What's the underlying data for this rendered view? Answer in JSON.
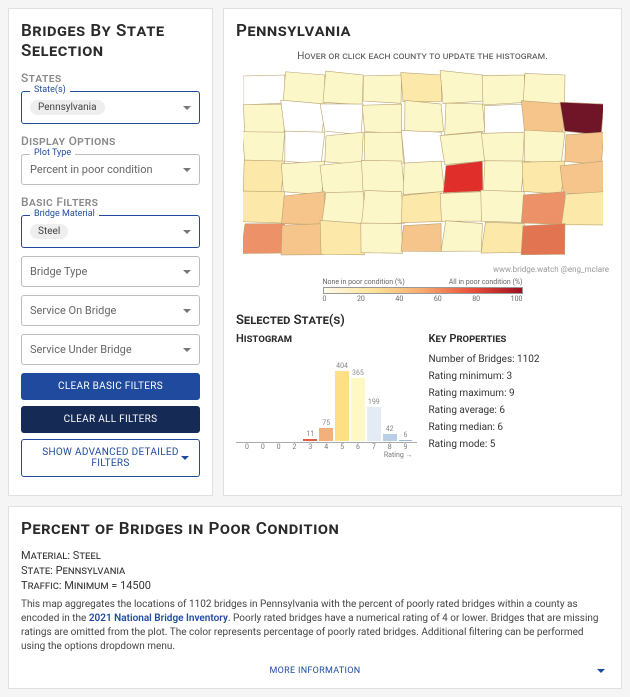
{
  "sidebar": {
    "title": "Bridges By State Selection",
    "sections": {
      "states": {
        "heading": "States",
        "field_label": "State(s)",
        "value": "Pennsylvania"
      },
      "display": {
        "heading": "Display Options",
        "field_label": "Plot Type",
        "value": "Percent in poor condition"
      },
      "filters": {
        "heading": "Basic Filters",
        "material_label": "Bridge Material",
        "material_value": "Steel",
        "bridge_type": "Bridge Type",
        "service_on": "Service On Bridge",
        "service_under": "Service Under Bridge"
      }
    },
    "buttons": {
      "clear_basic": "CLEAR BASIC FILTERS",
      "clear_all": "CLEAR ALL FILTERS",
      "advanced": "SHOW ADVANCED DETAILED FILTERS"
    }
  },
  "main": {
    "title": "Pennsylvania",
    "hint": "Hover or click each county to update the histogram.",
    "attribution": "www.bridge.watch @eng_mclare",
    "legend": {
      "left": "None in poor condition (%)",
      "right": "All in poor condition (%)",
      "ticks": [
        "0",
        "20",
        "40",
        "60",
        "80",
        "100"
      ]
    },
    "map_colors": {
      "pale": "#fcf7c9",
      "cream": "#fce8a8",
      "lt_orange": "#f6c58b",
      "orange": "#ec9168",
      "darker_orange": "#e27452",
      "red": "#e02e2a",
      "dark_red": "#701427",
      "none": "#ffffff",
      "stroke": "#bba271"
    },
    "selected_heading": "Selected State(s)",
    "histogram": {
      "title": "Histogram",
      "categories": [
        "0",
        "0",
        "0",
        "2",
        "3",
        "4",
        "5",
        "6",
        "7",
        "8",
        "9"
      ],
      "values": [
        0,
        0,
        0,
        0,
        11,
        75,
        404,
        365,
        199,
        42,
        6
      ],
      "colors": [
        "#eee",
        "#eee",
        "#eee",
        "#eee",
        "#df5e46",
        "#f3b07b",
        "#fddf86",
        "#fef8c5",
        "#e3ecf5",
        "#b8cfe6",
        "#9bb7d8"
      ],
      "max_ref": 404,
      "xlabel": "Rating →"
    },
    "properties": {
      "title": "Key Properties",
      "items": [
        "Number of Bridges: 1102",
        "Rating minimum: 3",
        "Rating maximum: 9",
        "Rating average: 6",
        "Rating median: 6",
        "Rating mode: 5"
      ]
    }
  },
  "footer": {
    "title": "Percent of Bridges in Poor Condition",
    "lines": [
      "Material: Steel",
      "State: Pennsylvania",
      "Traffic: Minimum = 14500"
    ],
    "desc_pre": "This map aggregates the locations of 1102 bridges in Pennsylvania with the percent of poorly rated bridges within a county as encoded in the ",
    "desc_link": "2021 National Bridge Inventory",
    "desc_post": ". Poorly rated bridges have a numerical rating of 4 or lower. Bridges that are missing ratings are omitted from the plot. The color represents percentage of poorly rated bridges. Additional filtering can be performed using the options dropdown menu.",
    "more": "MORE INFORMATION"
  }
}
